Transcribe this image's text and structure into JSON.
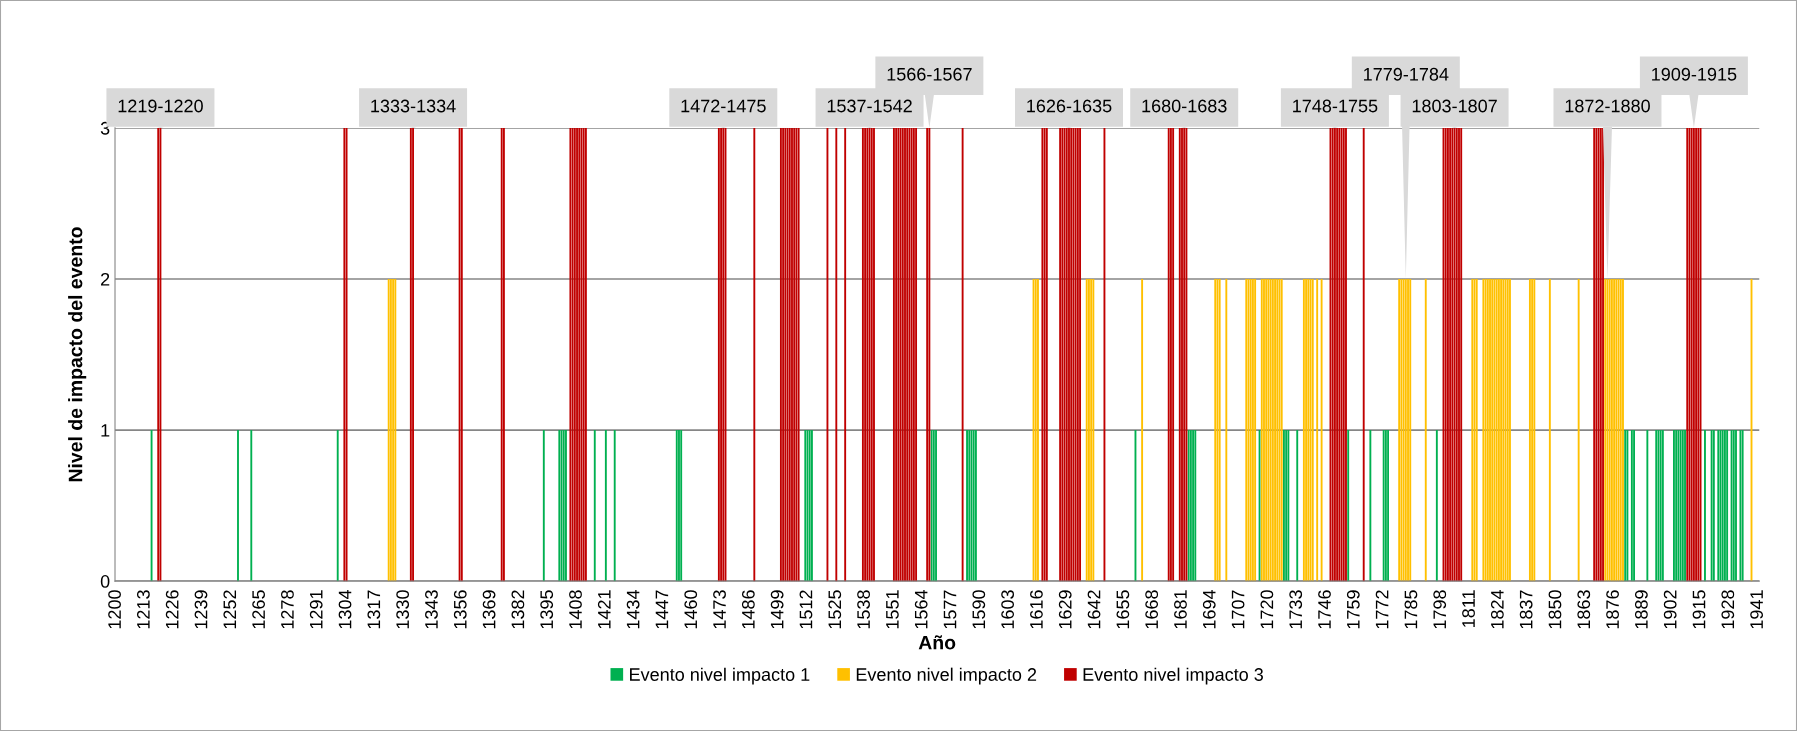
{
  "chart_data": {
    "type": "bar",
    "xlabel": "Año",
    "ylabel": "Nivel de impacto del evento",
    "xlim": [
      1199.5,
      1941.5
    ],
    "xticks": [
      1200,
      1213,
      1226,
      1239,
      1252,
      1265,
      1278,
      1291,
      1304,
      1317,
      1330,
      1343,
      1356,
      1369,
      1382,
      1395,
      1408,
      1421,
      1434,
      1447,
      1460,
      1473,
      1486,
      1499,
      1512,
      1525,
      1538,
      1551,
      1564,
      1577,
      1590,
      1603,
      1616,
      1629,
      1642,
      1655,
      1668,
      1681,
      1694,
      1707,
      1720,
      1733,
      1746,
      1759,
      1772,
      1785,
      1798,
      1811,
      1824,
      1837,
      1850,
      1863,
      1876,
      1889,
      1902,
      1915,
      1928,
      1941
    ],
    "ylim": [
      0,
      3
    ],
    "yticks": [
      0,
      1,
      2,
      3
    ],
    "grid": "y",
    "legend": "bottom",
    "series": [
      {
        "name": "Evento nivel impacto 1",
        "color": "#00b050",
        "x": [
          1216,
          1255,
          1261,
          1300,
          1393,
          1400,
          1401,
          1402,
          1403,
          1416,
          1421,
          1425,
          1453,
          1454,
          1455,
          1511,
          1512,
          1513,
          1514,
          1568,
          1569,
          1570,
          1584,
          1585,
          1586,
          1587,
          1588,
          1660,
          1684,
          1685,
          1686,
          1687,
          1716,
          1727,
          1728,
          1729,
          1733,
          1756,
          1766,
          1772,
          1773,
          1774,
          1796,
          1881,
          1882,
          1884,
          1885,
          1891,
          1895,
          1896,
          1897,
          1898,
          1903,
          1904,
          1905,
          1906,
          1907,
          1908,
          1917,
          1920,
          1921,
          1923,
          1924,
          1925,
          1926,
          1927,
          1929,
          1930,
          1931,
          1933,
          1934
        ],
        "values": [
          1,
          1,
          1,
          1,
          1,
          1,
          1,
          1,
          1,
          1,
          1,
          1,
          1,
          1,
          1,
          1,
          1,
          1,
          1,
          1,
          1,
          1,
          1,
          1,
          1,
          1,
          1,
          1,
          1,
          1,
          1,
          1,
          1,
          1,
          1,
          1,
          1,
          1,
          1,
          1,
          1,
          1,
          1,
          1,
          1,
          1,
          1,
          1,
          1,
          1,
          1,
          1,
          1,
          1,
          1,
          1,
          1,
          1,
          1,
          1,
          1,
          1,
          1,
          1,
          1,
          1,
          1,
          1,
          1,
          1,
          1
        ]
      },
      {
        "name": "Evento nivel impacto 2",
        "color": "#ffc000",
        "x": [
          1323,
          1324,
          1325,
          1326,
          1614,
          1615,
          1616,
          1638,
          1639,
          1640,
          1641,
          1663,
          1696,
          1697,
          1698,
          1701,
          1710,
          1711,
          1712,
          1713,
          1714,
          1717,
          1718,
          1719,
          1720,
          1721,
          1722,
          1723,
          1724,
          1725,
          1726,
          1736,
          1737,
          1738,
          1739,
          1740,
          1742,
          1744,
          1779,
          1780,
          1781,
          1782,
          1783,
          1784,
          1791,
          1812,
          1813,
          1814,
          1817,
          1818,
          1819,
          1820,
          1821,
          1822,
          1823,
          1824,
          1825,
          1826,
          1827,
          1828,
          1829,
          1838,
          1839,
          1840,
          1847,
          1860,
          1872,
          1873,
          1874,
          1875,
          1876,
          1877,
          1878,
          1879,
          1880,
          1938
        ],
        "values": [
          2,
          2,
          2,
          2,
          2,
          2,
          2,
          2,
          2,
          2,
          2,
          2,
          2,
          2,
          2,
          2,
          2,
          2,
          2,
          2,
          2,
          2,
          2,
          2,
          2,
          2,
          2,
          2,
          2,
          2,
          2,
          2,
          2,
          2,
          2,
          2,
          2,
          2,
          2,
          2,
          2,
          2,
          2,
          2,
          2,
          2,
          2,
          2,
          2,
          2,
          2,
          2,
          2,
          2,
          2,
          2,
          2,
          2,
          2,
          2,
          2,
          2,
          2,
          2,
          2,
          2,
          2,
          2,
          2,
          2,
          2,
          2,
          2,
          2,
          2,
          2
        ]
      },
      {
        "name": "Evento nivel impacto 3",
        "color": "#c00000",
        "x": [
          1219,
          1220,
          1303,
          1304,
          1333,
          1334,
          1355,
          1356,
          1374,
          1375,
          1405,
          1406,
          1407,
          1408,
          1409,
          1410,
          1411,
          1412,
          1472,
          1473,
          1474,
          1475,
          1488,
          1500,
          1501,
          1502,
          1503,
          1504,
          1505,
          1506,
          1507,
          1508,
          1521,
          1525,
          1529,
          1537,
          1538,
          1539,
          1540,
          1541,
          1542,
          1551,
          1552,
          1553,
          1554,
          1555,
          1556,
          1557,
          1558,
          1559,
          1560,
          1561,
          1566,
          1567,
          1582,
          1618,
          1619,
          1620,
          1626,
          1627,
          1628,
          1629,
          1630,
          1631,
          1632,
          1633,
          1634,
          1635,
          1646,
          1675,
          1676,
          1677,
          1680,
          1681,
          1682,
          1683,
          1748,
          1749,
          1750,
          1751,
          1752,
          1753,
          1754,
          1755,
          1763,
          1799,
          1800,
          1801,
          1802,
          1803,
          1804,
          1805,
          1806,
          1807,
          1867,
          1868,
          1869,
          1870,
          1871,
          1909,
          1910,
          1911,
          1912,
          1913,
          1914,
          1915
        ],
        "values": [
          3,
          3,
          3,
          3,
          3,
          3,
          3,
          3,
          3,
          3,
          3,
          3,
          3,
          3,
          3,
          3,
          3,
          3,
          3,
          3,
          3,
          3,
          3,
          3,
          3,
          3,
          3,
          3,
          3,
          3,
          3,
          3,
          3,
          3,
          3,
          3,
          3,
          3,
          3,
          3,
          3,
          3,
          3,
          3,
          3,
          3,
          3,
          3,
          3,
          3,
          3,
          3,
          3,
          3,
          3,
          3,
          3,
          3,
          3,
          3,
          3,
          3,
          3,
          3,
          3,
          3,
          3,
          3,
          3,
          3,
          3,
          3,
          3,
          3,
          3,
          3,
          3,
          3,
          3,
          3,
          3,
          3,
          3,
          3,
          3,
          3,
          3,
          3,
          3,
          3,
          3,
          3,
          3,
          3,
          3,
          3,
          3,
          3,
          3,
          3,
          3,
          3,
          3,
          3,
          3,
          3
        ]
      }
    ],
    "annotations": [
      {
        "text": "1219-1220",
        "x": 1220,
        "y": 3
      },
      {
        "text": "1333-1334",
        "x": 1334,
        "y": 3
      },
      {
        "text": "1472-1475",
        "x": 1474,
        "y": 3
      },
      {
        "text": "1537-1542",
        "x": 1540,
        "y": 3
      },
      {
        "text": "1566-1567",
        "x": 1567,
        "y": 3
      },
      {
        "text": "1626-1635",
        "x": 1630,
        "y": 3
      },
      {
        "text": "1680-1683",
        "x": 1682,
        "y": 3
      },
      {
        "text": "1748-1755",
        "x": 1750,
        "y": 3
      },
      {
        "text": "1779-1784",
        "x": 1782,
        "y": 2
      },
      {
        "text": "1803-1807",
        "x": 1804,
        "y": 3
      },
      {
        "text": "1872-1880",
        "x": 1873,
        "y": 2
      },
      {
        "text": "1909-1915",
        "x": 1912,
        "y": 3
      }
    ]
  }
}
